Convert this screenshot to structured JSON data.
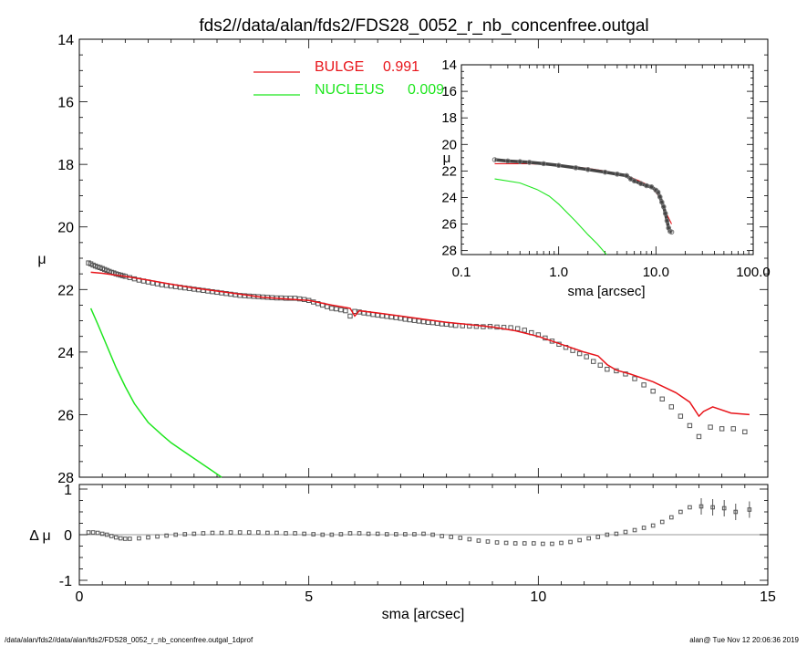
{
  "title": "fds2//data/alan/fds2/FDS28_0052_r_nb_concenfree.outgal",
  "footer": {
    "left": "/data/alan/fds2//data/alan/fds2/FDS28_0052_r_nb_concenfree.outgal_1dprof",
    "right": "alan@  Tue Nov 12 20:06:36 2019"
  },
  "colors": {
    "bulge": "#e8141a",
    "nucleus": "#1ee61e",
    "data": "#555555",
    "axes": "#000000"
  },
  "chart_data": [
    {
      "id": "main",
      "type": "line",
      "ylabel": "μ",
      "xlabel": "",
      "xlim": [
        0,
        15
      ],
      "ylim": [
        28,
        14
      ],
      "xticks": [
        0,
        5,
        10,
        15
      ],
      "yticks": [
        14,
        16,
        18,
        20,
        22,
        24,
        26,
        28
      ],
      "yticklabels": [
        "14",
        "16",
        "18",
        "20",
        "22",
        "24",
        "26",
        "28"
      ],
      "legend": [
        {
          "label": "BULGE",
          "value": "0.991",
          "color": "#e8141a"
        },
        {
          "label": "NUCLEUS",
          "value": "0.009",
          "color": "#1ee61e"
        }
      ],
      "legend_position": "top-center",
      "series": [
        {
          "name": "BULGE",
          "color": "#e8141a",
          "x": [
            0.25,
            0.5,
            1.0,
            1.5,
            2.0,
            2.5,
            3.0,
            3.5,
            4.0,
            4.5,
            5.0,
            5.5,
            5.9,
            6.0,
            6.1,
            6.5,
            7.0,
            7.5,
            8.0,
            8.5,
            9.0,
            9.5,
            10.0,
            10.5,
            11.0,
            11.3,
            11.5,
            11.7,
            12.0,
            12.5,
            13.0,
            13.3,
            13.5,
            13.6,
            13.8,
            14.2,
            14.6
          ],
          "y": [
            21.45,
            21.48,
            21.58,
            21.7,
            21.83,
            21.95,
            22.05,
            22.15,
            22.25,
            22.3,
            22.35,
            22.5,
            22.6,
            22.85,
            22.68,
            22.75,
            22.85,
            22.95,
            23.05,
            23.12,
            23.2,
            23.32,
            23.5,
            23.75,
            24.0,
            24.12,
            24.4,
            24.58,
            24.7,
            24.95,
            25.3,
            25.6,
            26.05,
            25.9,
            25.75,
            25.95,
            26.0
          ]
        },
        {
          "name": "NUCLEUS",
          "color": "#1ee61e",
          "x": [
            0.25,
            0.4,
            0.6,
            0.8,
            1.0,
            1.2,
            1.5,
            1.8,
            2.0,
            2.3,
            2.6,
            2.9,
            3.1
          ],
          "y": [
            22.6,
            23.1,
            23.8,
            24.5,
            25.1,
            25.65,
            26.25,
            26.65,
            26.9,
            27.2,
            27.5,
            27.8,
            28.0
          ]
        }
      ],
      "data_points": {
        "name": "data",
        "marker": "square",
        "x": [
          0.2,
          0.25,
          0.3,
          0.35,
          0.4,
          0.45,
          0.5,
          0.55,
          0.6,
          0.65,
          0.7,
          0.75,
          0.8,
          0.85,
          0.9,
          0.95,
          1.0,
          1.1,
          1.2,
          1.3,
          1.4,
          1.5,
          1.6,
          1.7,
          1.8,
          1.9,
          2.0,
          2.1,
          2.2,
          2.3,
          2.4,
          2.5,
          2.6,
          2.7,
          2.8,
          2.9,
          3.0,
          3.1,
          3.2,
          3.3,
          3.4,
          3.5,
          3.6,
          3.7,
          3.8,
          3.9,
          4.0,
          4.1,
          4.2,
          4.3,
          4.4,
          4.5,
          4.6,
          4.7,
          4.8,
          4.9,
          5.0,
          5.1,
          5.2,
          5.3,
          5.4,
          5.5,
          5.6,
          5.7,
          5.8,
          5.9,
          6.0,
          6.1,
          6.2,
          6.3,
          6.4,
          6.5,
          6.6,
          6.7,
          6.8,
          6.9,
          7.0,
          7.1,
          7.2,
          7.3,
          7.4,
          7.5,
          7.6,
          7.7,
          7.8,
          7.9,
          8.0,
          8.1,
          8.2,
          8.35,
          8.5,
          8.65,
          8.8,
          8.95,
          9.1,
          9.25,
          9.4,
          9.55,
          9.7,
          9.85,
          10.0,
          10.15,
          10.3,
          10.45,
          10.6,
          10.75,
          10.9,
          11.05,
          11.2,
          11.35,
          11.5,
          11.7,
          11.9,
          12.1,
          12.3,
          12.5,
          12.7,
          12.9,
          13.1,
          13.3,
          13.5,
          13.75,
          14.0,
          14.25,
          14.5
        ],
        "y": [
          21.15,
          21.18,
          21.22,
          21.25,
          21.28,
          21.3,
          21.33,
          21.36,
          21.39,
          21.42,
          21.45,
          21.47,
          21.5,
          21.52,
          21.54,
          21.56,
          21.58,
          21.62,
          21.66,
          21.7,
          21.73,
          21.76,
          21.79,
          21.82,
          21.85,
          21.87,
          21.89,
          21.91,
          21.93,
          21.95,
          21.97,
          21.99,
          22.01,
          22.03,
          22.05,
          22.07,
          22.09,
          22.11,
          22.13,
          22.15,
          22.17,
          22.19,
          22.2,
          22.21,
          22.22,
          22.23,
          22.24,
          22.25,
          22.26,
          22.27,
          22.27,
          22.28,
          22.28,
          22.28,
          22.3,
          22.32,
          22.35,
          22.4,
          22.45,
          22.5,
          22.55,
          22.6,
          22.62,
          22.65,
          22.68,
          22.85,
          22.7,
          22.72,
          22.75,
          22.77,
          22.8,
          22.82,
          22.84,
          22.86,
          22.88,
          22.9,
          22.92,
          22.95,
          22.97,
          22.99,
          23.01,
          23.03,
          23.05,
          23.06,
          23.08,
          23.1,
          23.11,
          23.13,
          23.15,
          23.16,
          23.17,
          23.18,
          23.19,
          23.18,
          23.2,
          23.21,
          23.22,
          23.25,
          23.3,
          23.38,
          23.45,
          23.55,
          23.65,
          23.75,
          23.85,
          23.95,
          24.05,
          24.15,
          24.3,
          24.42,
          24.55,
          24.6,
          24.7,
          24.85,
          25.05,
          25.25,
          25.5,
          25.75,
          26.05,
          26.35,
          26.7,
          26.4,
          26.45,
          26.45,
          26.55
        ]
      }
    },
    {
      "id": "inset",
      "type": "scatter",
      "xlabel": "sma [arcsec]",
      "ylabel": "μ",
      "xscale": "log",
      "xlim": [
        0.1,
        100
      ],
      "ylim": [
        28.3,
        14
      ],
      "xticks": [
        0.1,
        1.0,
        10.0,
        100.0
      ],
      "xticklabels": [
        "0.1",
        "1.0",
        "10.0",
        "100.0"
      ],
      "yticks": [
        14,
        16,
        18,
        20,
        22,
        24,
        26,
        28
      ],
      "yticklabels": [
        "14",
        "16",
        "18",
        "20",
        "22",
        "24",
        "26",
        "28"
      ],
      "series": [
        {
          "name": "BULGE",
          "color": "#e8141a",
          "x": [
            0.22,
            0.5,
            1.0,
            2.0,
            3.0,
            5.0,
            7.0,
            9.0,
            11.0,
            13.0,
            14.5
          ],
          "y": [
            21.45,
            21.45,
            21.55,
            21.8,
            22.0,
            22.35,
            22.8,
            23.2,
            24.0,
            25.3,
            26.0
          ]
        },
        {
          "name": "NUCLEUS",
          "color": "#1ee61e",
          "x": [
            0.22,
            0.4,
            0.6,
            0.8,
            1.0,
            1.5,
            2.0,
            2.5,
            3.1
          ],
          "y": [
            22.6,
            22.9,
            23.4,
            23.9,
            24.5,
            25.8,
            26.8,
            27.5,
            28.3
          ]
        },
        {
          "name": "data",
          "color": "#555555",
          "x": [
            0.22,
            0.3,
            0.4,
            0.5,
            0.7,
            1.0,
            1.5,
            2.0,
            3.0,
            4.0,
            5.0,
            5.5,
            6.0,
            7.0,
            8.0,
            9.0,
            10.0,
            10.5,
            11.0,
            11.5,
            12.0,
            12.5,
            13.0,
            13.5,
            14.0,
            14.5
          ],
          "y": [
            21.15,
            21.25,
            21.3,
            21.35,
            21.45,
            21.58,
            21.76,
            21.89,
            22.09,
            22.24,
            22.35,
            22.6,
            22.75,
            22.95,
            23.11,
            23.2,
            23.45,
            23.6,
            23.95,
            24.35,
            24.7,
            25.2,
            25.75,
            26.3,
            26.55,
            26.6
          ]
        }
      ]
    },
    {
      "id": "residual",
      "type": "scatter",
      "xlabel": "sma [arcsec]",
      "ylabel": "Δ μ",
      "xlim": [
        0,
        15
      ],
      "ylim": [
        -1.1,
        1.1
      ],
      "xticks": [
        0,
        5,
        10,
        15
      ],
      "xticklabels": [
        "0",
        "5",
        "10",
        "15"
      ],
      "yticks": [
        1,
        0,
        -1
      ],
      "yticklabels": [
        "1",
        "0",
        "-1"
      ],
      "reference_line_y": 0,
      "x": [
        0.2,
        0.3,
        0.4,
        0.5,
        0.6,
        0.7,
        0.8,
        0.9,
        1.0,
        1.1,
        1.3,
        1.5,
        1.7,
        1.9,
        2.1,
        2.3,
        2.5,
        2.7,
        2.9,
        3.1,
        3.3,
        3.5,
        3.7,
        3.9,
        4.1,
        4.3,
        4.5,
        4.7,
        4.9,
        5.1,
        5.3,
        5.5,
        5.7,
        5.9,
        6.1,
        6.3,
        6.5,
        6.7,
        6.9,
        7.1,
        7.3,
        7.5,
        7.7,
        7.9,
        8.1,
        8.3,
        8.5,
        8.7,
        8.9,
        9.1,
        9.3,
        9.5,
        9.7,
        9.9,
        10.1,
        10.3,
        10.5,
        10.7,
        10.9,
        11.1,
        11.3,
        11.5,
        11.7,
        11.9,
        12.1,
        12.3,
        12.5,
        12.7,
        12.9,
        13.1,
        13.3,
        13.55,
        13.8,
        14.05,
        14.3,
        14.6
      ],
      "y": [
        0.05,
        0.05,
        0.04,
        0.02,
        0.0,
        -0.03,
        -0.06,
        -0.08,
        -0.09,
        -0.09,
        -0.08,
        -0.06,
        -0.04,
        -0.02,
        0.0,
        0.01,
        0.02,
        0.03,
        0.04,
        0.04,
        0.05,
        0.05,
        0.05,
        0.05,
        0.04,
        0.04,
        0.03,
        0.03,
        0.02,
        0.01,
        0.0,
        0.0,
        0.01,
        0.03,
        0.03,
        0.02,
        0.02,
        0.01,
        0.01,
        0.01,
        0.01,
        0.02,
        0.0,
        -0.03,
        -0.05,
        -0.07,
        -0.1,
        -0.13,
        -0.15,
        -0.17,
        -0.18,
        -0.19,
        -0.19,
        -0.19,
        -0.2,
        -0.2,
        -0.18,
        -0.16,
        -0.12,
        -0.08,
        -0.05,
        0.0,
        0.02,
        0.06,
        0.1,
        0.15,
        0.2,
        0.28,
        0.38,
        0.5,
        0.6,
        0.62,
        0.6,
        0.58,
        0.5,
        0.55
      ]
    }
  ]
}
